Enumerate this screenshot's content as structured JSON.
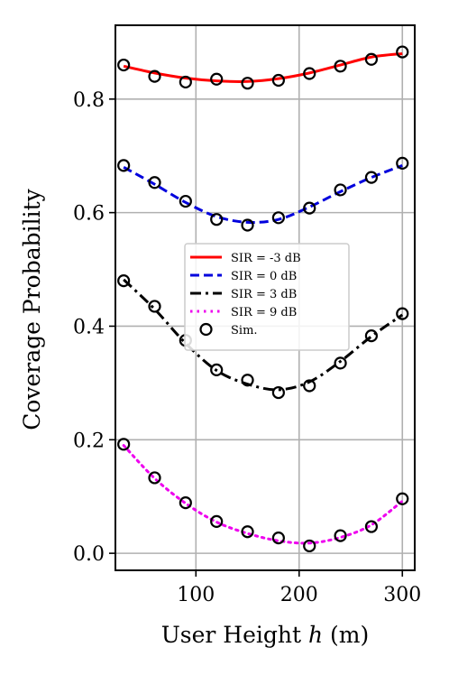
{
  "chart_data": {
    "type": "line",
    "xlabel": "User Height ",
    "xlabel_var": "h",
    "xlabel_unit": " (m)",
    "ylabel": "Coverage Probability",
    "xlim": [
      22,
      312
    ],
    "ylim": [
      -0.03,
      0.93
    ],
    "xticks": [
      100,
      200,
      300
    ],
    "yticks": [
      0.0,
      0.2,
      0.4,
      0.6,
      0.8
    ],
    "ytick_labels": [
      "0.0",
      "0.2",
      "0.4",
      "0.6",
      "0.8"
    ],
    "grid": true,
    "legend_position": "center-right",
    "markers_label": "Sim.",
    "x": [
      30,
      60,
      90,
      120,
      150,
      180,
      210,
      240,
      270,
      300
    ],
    "series": [
      {
        "name": "SIR = -3 dB",
        "color": "#ff0000",
        "dash": "solid",
        "curve": [
          0.858,
          0.846,
          0.837,
          0.832,
          0.831,
          0.836,
          0.846,
          0.86,
          0.874,
          0.88
        ],
        "sim": [
          0.86,
          0.84,
          0.83,
          0.835,
          0.828,
          0.833,
          0.845,
          0.858,
          0.87,
          0.883
        ]
      },
      {
        "name": "SIR = 0 dB",
        "color": "#0000dd",
        "dash": "dashed",
        "curve": [
          0.68,
          0.65,
          0.618,
          0.593,
          0.583,
          0.588,
          0.61,
          0.637,
          0.662,
          0.683
        ],
        "sim": [
          0.683,
          0.653,
          0.62,
          0.588,
          0.578,
          0.591,
          0.608,
          0.64,
          0.662,
          0.687
        ]
      },
      {
        "name": "SIR = 3 dB",
        "color": "#000000",
        "dash": "dashdot",
        "curve": [
          0.482,
          0.43,
          0.37,
          0.322,
          0.298,
          0.288,
          0.302,
          0.338,
          0.382,
          0.42
        ],
        "sim": [
          0.48,
          0.435,
          0.375,
          0.323,
          0.305,
          0.283,
          0.295,
          0.335,
          0.383,
          0.422
        ]
      },
      {
        "name": "SIR = 9 dB",
        "color": "#ee00ee",
        "dash": "dotted",
        "curve": [
          0.19,
          0.132,
          0.088,
          0.055,
          0.035,
          0.022,
          0.018,
          0.028,
          0.05,
          0.092
        ],
        "sim": [
          0.192,
          0.133,
          0.089,
          0.056,
          0.038,
          0.027,
          0.013,
          0.031,
          0.047,
          0.096
        ]
      }
    ]
  }
}
